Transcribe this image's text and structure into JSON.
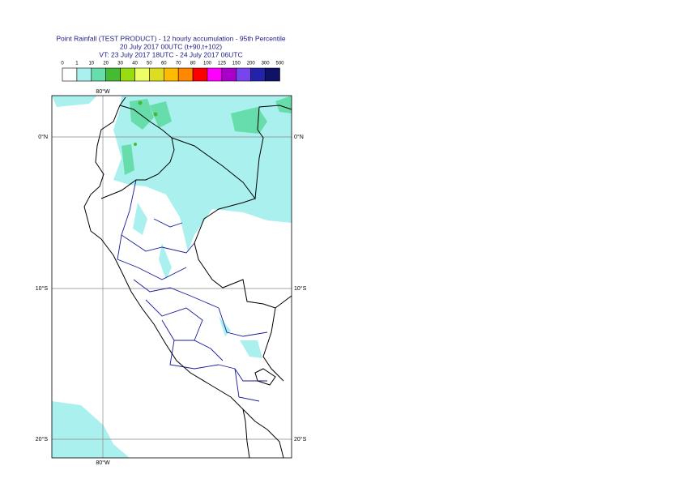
{
  "header": {
    "lines": [
      "Point Rainfall (TEST PRODUCT) - 12 hourly accumulation - 95th Percentile",
      "20 July 2017 00UTC (t+90,t+102)",
      "VT: 23 July 2017 18UTC - 24 July 2017 06UTC"
    ]
  },
  "legend": {
    "labels": [
      "0",
      "1",
      "10",
      "20",
      "30",
      "40",
      "50",
      "60",
      "70",
      "80",
      "100",
      "125",
      "150",
      "200",
      "300",
      "500"
    ],
    "colors": [
      "#ffffff",
      "#aaf0ee",
      "#66ddaa",
      "#44bb33",
      "#99dd11",
      "#eeff66",
      "#dddd22",
      "#ffbb00",
      "#ff8800",
      "#ff0000",
      "#ff00ff",
      "#aa00cc",
      "#7744ee",
      "#2222aa",
      "#111166"
    ]
  },
  "map": {
    "lon_labels": [
      "80°W"
    ],
    "lat_labels": [
      "0°N",
      "10°S",
      "20°S"
    ]
  }
}
